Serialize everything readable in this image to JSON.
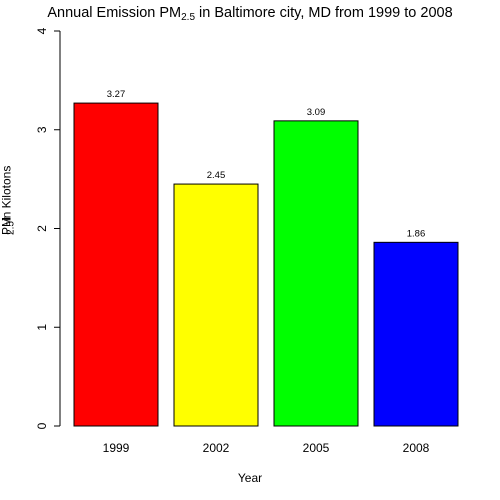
{
  "chart_data": {
    "type": "bar",
    "title": {
      "prefix": "Annual Emission PM",
      "subscript": "2.5",
      "suffix": " in Baltimore city, MD from 1999 to 2008"
    },
    "xlabel": "Year",
    "ylabel": {
      "prefix": "PM",
      "subscript": "2.5",
      "suffix": " in Kilotons"
    },
    "categories": [
      "1999",
      "2002",
      "2005",
      "2008"
    ],
    "values": [
      3.27,
      2.45,
      3.09,
      1.86
    ],
    "data_labels": [
      "3.27",
      "2.45",
      "3.09",
      "1.86"
    ],
    "colors": [
      "#ff0000",
      "#ffff00",
      "#00ff00",
      "#0000ff"
    ],
    "ylim": [
      0,
      4
    ],
    "yticks": [
      0,
      1,
      2,
      3,
      4
    ],
    "grid": false,
    "legend": false
  }
}
